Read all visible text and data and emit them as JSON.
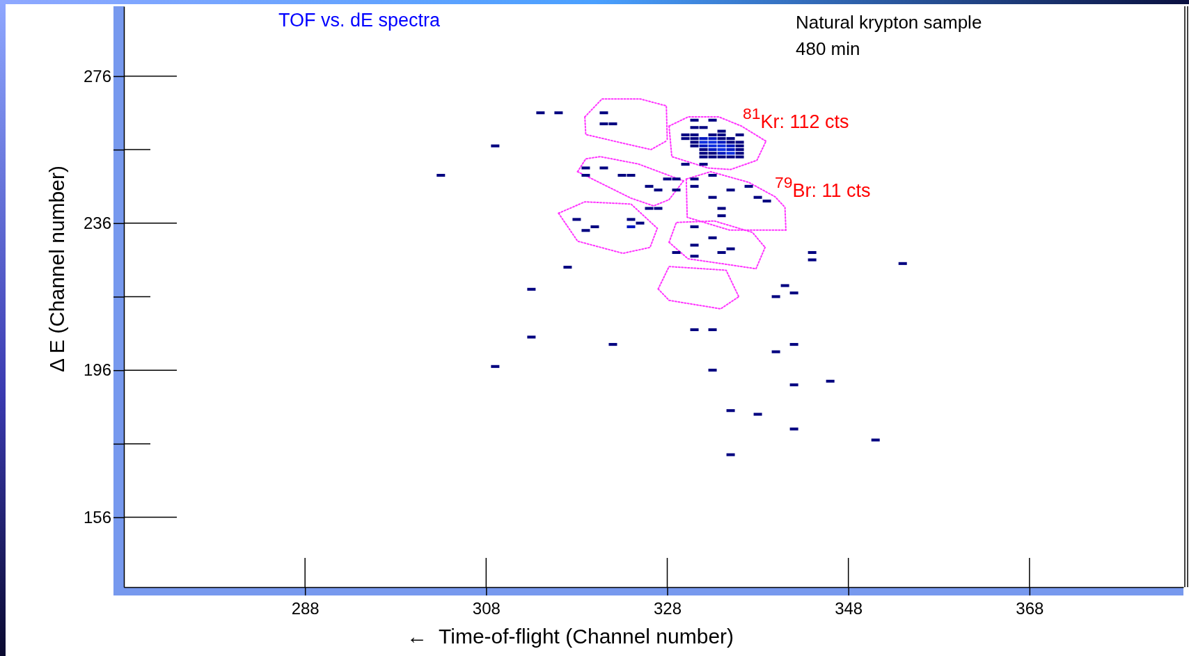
{
  "chart_data": {
    "type": "scatter",
    "title": "TOF vs. dE spectra",
    "xlabel": "←  Time-of-flight (Channel number)",
    "ylabel": "Δ E (Channel number)",
    "annotations": [
      "Natural krypton sample",
      "480 min",
      "$^{81}$Kr: 112 cts",
      "$^{79}$Br: 11 cts"
    ],
    "xlim": [
      268,
      385
    ],
    "ylim": [
      137,
      295
    ],
    "xticks": [
      288,
      308,
      328,
      348,
      368
    ],
    "yticks": [
      {
        "value": 156,
        "label": "156"
      },
      {
        "value": 176,
        "label": null
      },
      {
        "value": 196,
        "label": "196"
      },
      {
        "value": 216,
        "label": null
      },
      {
        "value": 236,
        "label": "236"
      },
      {
        "value": 256,
        "label": null
      },
      {
        "value": 276,
        "label": "276"
      }
    ],
    "series": [
      {
        "type": "line",
        "color": "#ff33ff",
        "line_style": "dotted",
        "x": [
          318.9,
          320.8,
          325.0,
          327.9,
          328.0
        ],
        "values": [
          264.9,
          269.8,
          269.8,
          267.9,
          258.5
        ]
      },
      {
        "type": "line",
        "color": "#ff33ff",
        "line_style": "dotted",
        "x": [
          318.9,
          319.0,
          326.2,
          328.0
        ],
        "values": [
          264.9,
          260.1,
          256.0,
          258.5
        ]
      },
      {
        "type": "line",
        "color": "#ff33ff",
        "line_style": "dotted",
        "x": [
          328.2,
          330.3,
          333.7,
          336.2,
          338.9
        ],
        "values": [
          262.4,
          264.9,
          264.9,
          262.4,
          258.3
        ]
      },
      {
        "type": "line",
        "color": "#ff33ff",
        "line_style": "dotted",
        "x": [
          328.2,
          328.5,
          332.5,
          335.0,
          337.9,
          338.9
        ],
        "values": [
          262.4,
          254.1,
          251.0,
          250.6,
          253.1,
          258.3
        ]
      },
      {
        "type": "line",
        "color": "#ff33ff",
        "line_style": "dotted",
        "x": [
          318.1,
          319.0,
          320.6,
          324.8,
          329.8
        ],
        "values": [
          250.0,
          253.5,
          254.1,
          252.1,
          247.5
        ]
      },
      {
        "type": "line",
        "color": "#ff33ff",
        "line_style": "dotted",
        "x": [
          318.1,
          324.0,
          326.5,
          328.2,
          329.8
        ],
        "values": [
          250.0,
          242.8,
          240.7,
          242.4,
          247.5
        ]
      },
      {
        "type": "line",
        "color": "#ff33ff",
        "line_style": "dotted",
        "x": [
          330.1,
          332.8,
          337.0,
          339.9,
          341.0,
          341.1
        ],
        "values": [
          248.0,
          250.0,
          247.1,
          243.2,
          240.3,
          234.1
        ]
      },
      {
        "type": "line",
        "color": "#ff33ff",
        "line_style": "dotted",
        "x": [
          330.1,
          330.2,
          334.9,
          341.1
        ],
        "values": [
          248.0,
          237.6,
          234.1,
          234.1
        ]
      },
      {
        "type": "line",
        "color": "#ff33ff",
        "line_style": "dotted",
        "x": [
          316.0,
          318.9,
          324.0,
          326.9
        ],
        "values": [
          238.7,
          241.8,
          241.2,
          234.6
        ]
      },
      {
        "type": "line",
        "color": "#ff33ff",
        "line_style": "dotted",
        "x": [
          316.0,
          318.1,
          323.1,
          326.1,
          326.9
        ],
        "values": [
          238.7,
          231.1,
          227.8,
          229.4,
          234.6
        ]
      },
      {
        "type": "line",
        "color": "#ff33ff",
        "line_style": "dotted",
        "x": [
          328.2,
          329.0,
          333.2,
          337.4,
          338.8
        ],
        "values": [
          230.8,
          236.2,
          236.6,
          233.5,
          229.4
        ]
      },
      {
        "type": "line",
        "color": "#ff33ff",
        "line_style": "dotted",
        "x": [
          328.2,
          330.3,
          334.0,
          337.8,
          338.8
        ],
        "values": [
          230.8,
          226.3,
          225.0,
          223.6,
          229.4
        ]
      },
      {
        "type": "line",
        "color": "#ff33ff",
        "line_style": "dotted",
        "x": [
          327.0,
          328.2,
          334.5,
          335.9
        ],
        "values": [
          218.1,
          224.2,
          223.2,
          216.0
        ]
      },
      {
        "type": "line",
        "color": "#ff33ff",
        "line_style": "dotted",
        "x": [
          327.0,
          328.2,
          333.9,
          335.9
        ],
        "values": [
          218.1,
          215.0,
          212.7,
          216.0
        ]
      },
      {
        "marker": "square",
        "x": [
          330,
          331,
          333,
          334,
          330,
          331,
          332,
          333,
          334,
          335,
          331,
          332,
          333,
          334,
          335,
          336,
          331,
          332,
          333,
          334,
          335,
          336,
          332,
          333,
          334,
          335,
          336,
          332,
          333,
          334,
          335,
          336,
          332,
          333,
          334,
          335,
          336,
          331,
          333,
          331,
          332,
          334,
          336,
          314,
          316,
          309,
          303,
          321,
          321,
          322,
          330,
          332,
          319,
          319,
          321,
          323,
          324,
          328,
          329,
          331,
          333,
          335,
          337,
          338,
          339,
          326,
          327,
          329,
          331,
          333,
          334,
          334,
          326,
          327,
          318,
          320,
          319,
          324,
          324,
          325,
          331,
          331,
          329,
          331,
          333,
          334,
          335,
          344,
          344,
          354,
          317,
          313,
          313,
          322,
          309,
          331,
          333,
          341,
          342,
          340,
          342,
          340,
          333,
          346,
          342,
          335,
          338,
          342,
          351,
          335
        ],
        "values": [
          260,
          260,
          260,
          260,
          259,
          259,
          259,
          259,
          259,
          259,
          258,
          258,
          258,
          258,
          258,
          258,
          257,
          257,
          257,
          257,
          257,
          257,
          256,
          256,
          256,
          256,
          256,
          255,
          255,
          255,
          255,
          255,
          254,
          254,
          254,
          254,
          254,
          264,
          264,
          262,
          262,
          261,
          260,
          266,
          266,
          257,
          249,
          266,
          263,
          263,
          252,
          252,
          251,
          249,
          251,
          249,
          249,
          248,
          248,
          248,
          249,
          245,
          246,
          243,
          242,
          246,
          245,
          245,
          246,
          243,
          240,
          238,
          240,
          240,
          237,
          235,
          234,
          237,
          235,
          236,
          235,
          230,
          228,
          227,
          232,
          228,
          229,
          228,
          226,
          225,
          224,
          218,
          205,
          203,
          197,
          207,
          207,
          219,
          217,
          216,
          203,
          201,
          196,
          193,
          192,
          185,
          184,
          180,
          177,
          173
        ],
        "colors": [
          "#000080",
          "#000080",
          "#000080",
          "#000080",
          "#000080",
          "#000080",
          "#0018c0",
          "#0018c0",
          "#000080",
          "#000080",
          "#000080",
          "#1030e0",
          "#1030e0",
          "#0018c0",
          "#000080",
          "#000080",
          "#000080",
          "#0018c0",
          "#1030e0",
          "#1030e0",
          "#0018c0",
          "#000080",
          "#000080",
          "#0018c0",
          "#1030e0",
          "#0018c0",
          "#000080",
          "#000080",
          "#000080",
          "#0018c0",
          "#1030e0",
          "#000080",
          "#000080",
          "#000080",
          "#000080",
          "#000080",
          "#000080",
          "#000080",
          "#000080",
          "#000080",
          "#000080",
          "#000080",
          "#000080",
          "#000080",
          "#000080",
          "#000080",
          "#000080",
          "#000080",
          "#000080",
          "#000080",
          "#000080",
          "#000080",
          "#000080",
          "#000080",
          "#000080",
          "#000080",
          "#000080",
          "#000080",
          "#000080",
          "#000080",
          "#000080",
          "#000080",
          "#000080",
          "#000080",
          "#000080",
          "#000080",
          "#000080",
          "#000080",
          "#000080",
          "#000080",
          "#000080",
          "#000080",
          "#000080",
          "#000080",
          "#000080",
          "#000080",
          "#000080",
          "#000080",
          "#0018c0",
          "#000080",
          "#000080",
          "#000080",
          "#000080",
          "#000080",
          "#000080",
          "#000080",
          "#000080",
          "#000080",
          "#000080",
          "#000080",
          "#000080",
          "#000080",
          "#000080",
          "#000080",
          "#000080",
          "#000080",
          "#000080",
          "#000080",
          "#000080",
          "#000080",
          "#000080",
          "#000080",
          "#000080",
          "#000080",
          "#000080",
          "#000080",
          "#000080",
          "#000080",
          "#000080",
          "#000080"
        ]
      }
    ]
  }
}
